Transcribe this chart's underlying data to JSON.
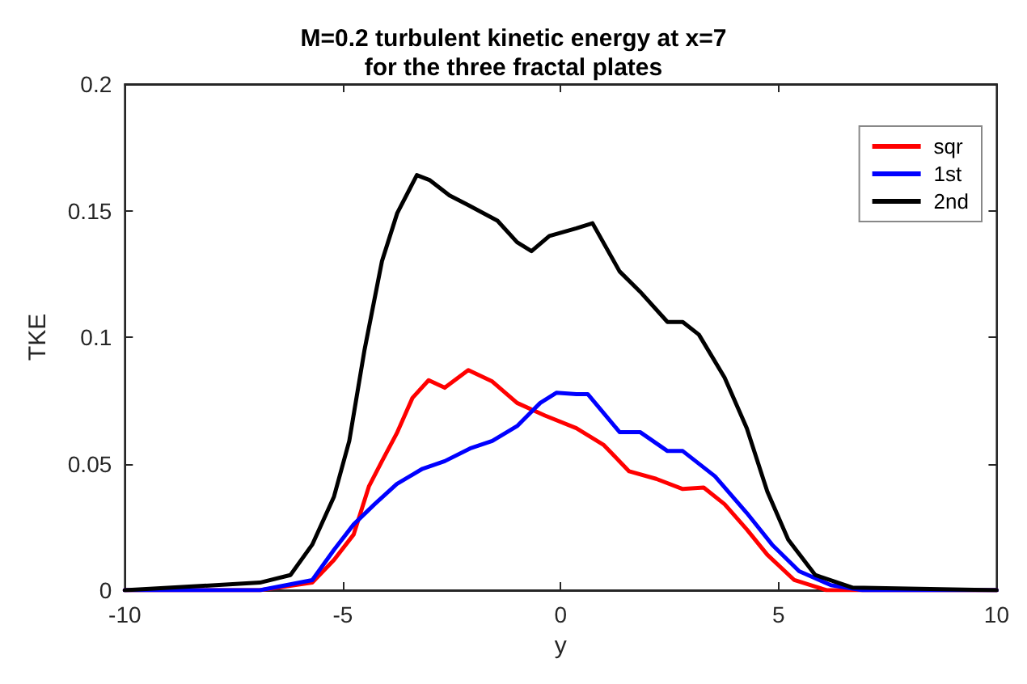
{
  "chart_data": {
    "type": "line",
    "title": "M=0.2 turbulent kinetic energy at x=7\nfor the three fractal plates",
    "xlabel": "y",
    "ylabel": "TKE",
    "xlim": [
      -10,
      10
    ],
    "xticks": [
      -10,
      -5,
      0,
      5,
      10
    ],
    "ylim": [
      0,
      0.2
    ],
    "yticks": [
      0,
      0.05,
      0.1,
      0.15,
      0.2
    ],
    "grid": false,
    "legend": "top right",
    "marker": "none",
    "line_style": "solid",
    "series": [
      {
        "name": "sqr",
        "color": "#ff0000",
        "x": [
          -10,
          -6.9,
          -5.7,
          -5.2,
          -4.75,
          -4.4,
          -4.1,
          -3.76,
          -3.4,
          -3.03,
          -2.66,
          -2.12,
          -1.57,
          -1,
          -0.36,
          0.36,
          0.98,
          1.57,
          2.19,
          2.8,
          3.28,
          3.76,
          4.27,
          4.74,
          5.36,
          6.1,
          10
        ],
        "values": [
          0,
          0,
          0.003,
          0.012,
          0.022,
          0.041,
          0.051,
          0.062,
          0.076,
          0.083,
          0.08,
          0.087,
          0.0825,
          0.074,
          0.069,
          0.064,
          0.0575,
          0.047,
          0.044,
          0.04,
          0.0406,
          0.034,
          0.024,
          0.014,
          0.004,
          0,
          0
        ]
      },
      {
        "name": "1st",
        "color": "#0000ff",
        "x": [
          -10,
          -6.9,
          -5.7,
          -5.2,
          -4.75,
          -4.27,
          -3.76,
          -3.17,
          -2.66,
          -2.08,
          -1.57,
          -0.99,
          -0.47,
          -0.1,
          0.36,
          0.62,
          1.35,
          1.82,
          2.45,
          2.8,
          3.54,
          4.27,
          4.85,
          5.47,
          6.2,
          6.93,
          10
        ],
        "values": [
          0,
          0,
          0.004,
          0.016,
          0.026,
          0.034,
          0.042,
          0.048,
          0.051,
          0.056,
          0.059,
          0.065,
          0.074,
          0.078,
          0.0775,
          0.0775,
          0.0625,
          0.0625,
          0.055,
          0.055,
          0.045,
          0.0305,
          0.018,
          0.0075,
          0.002,
          0,
          0
        ]
      },
      {
        "name": "2nd",
        "color": "#000000",
        "x": [
          -10,
          -6.9,
          -6.2,
          -5.7,
          -5.2,
          -4.85,
          -4.5,
          -4.1,
          -3.75,
          -3.3,
          -3,
          -2.55,
          -2.1,
          -1.45,
          -1,
          -0.67,
          -0.26,
          0.36,
          0.73,
          1.35,
          1.82,
          2.45,
          2.8,
          3.17,
          3.76,
          4.27,
          4.74,
          5.22,
          5.84,
          6.7,
          10
        ],
        "values": [
          0,
          0.003,
          0.006,
          0.018,
          0.037,
          0.059,
          0.095,
          0.13,
          0.149,
          0.164,
          0.162,
          0.156,
          0.152,
          0.146,
          0.1375,
          0.134,
          0.14,
          0.143,
          0.145,
          0.126,
          0.118,
          0.106,
          0.106,
          0.101,
          0.084,
          0.064,
          0.039,
          0.02,
          0.006,
          0.001,
          0
        ]
      }
    ]
  }
}
